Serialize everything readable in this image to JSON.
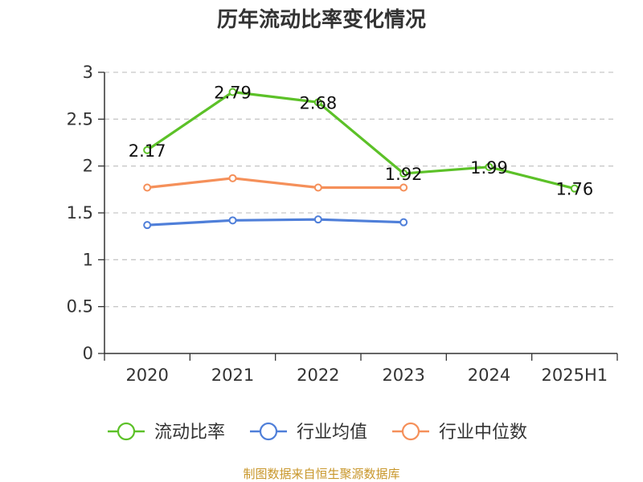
{
  "chart_data": {
    "type": "line",
    "title": "历年流动比率变化情况",
    "categories": [
      "2020",
      "2021",
      "2022",
      "2023",
      "2024",
      "2025H1"
    ],
    "ylim": [
      0,
      3
    ],
    "y_ticks": [
      "0",
      "0.5",
      "1",
      "1.5",
      "2",
      "2.5",
      "3"
    ],
    "grid": true,
    "legend_position": "bottom",
    "series": [
      {
        "name": "流动比率",
        "color": "#5cc128",
        "values": [
          2.17,
          2.79,
          2.68,
          1.92,
          1.99,
          1.76
        ],
        "labels": [
          "2.17",
          "2.79",
          "2.68",
          "1.92",
          "1.99",
          "1.76"
        ]
      },
      {
        "name": "行业均值",
        "color": "#4f7fd9",
        "values": [
          1.37,
          1.42,
          1.43,
          1.4,
          null,
          null
        ]
      },
      {
        "name": "行业中位数",
        "color": "#f5905a",
        "values": [
          1.77,
          1.87,
          1.77,
          1.77,
          null,
          null
        ]
      }
    ]
  },
  "source": {
    "text": "制图数据来自恒生聚源数据库",
    "color": "#c8962a"
  }
}
